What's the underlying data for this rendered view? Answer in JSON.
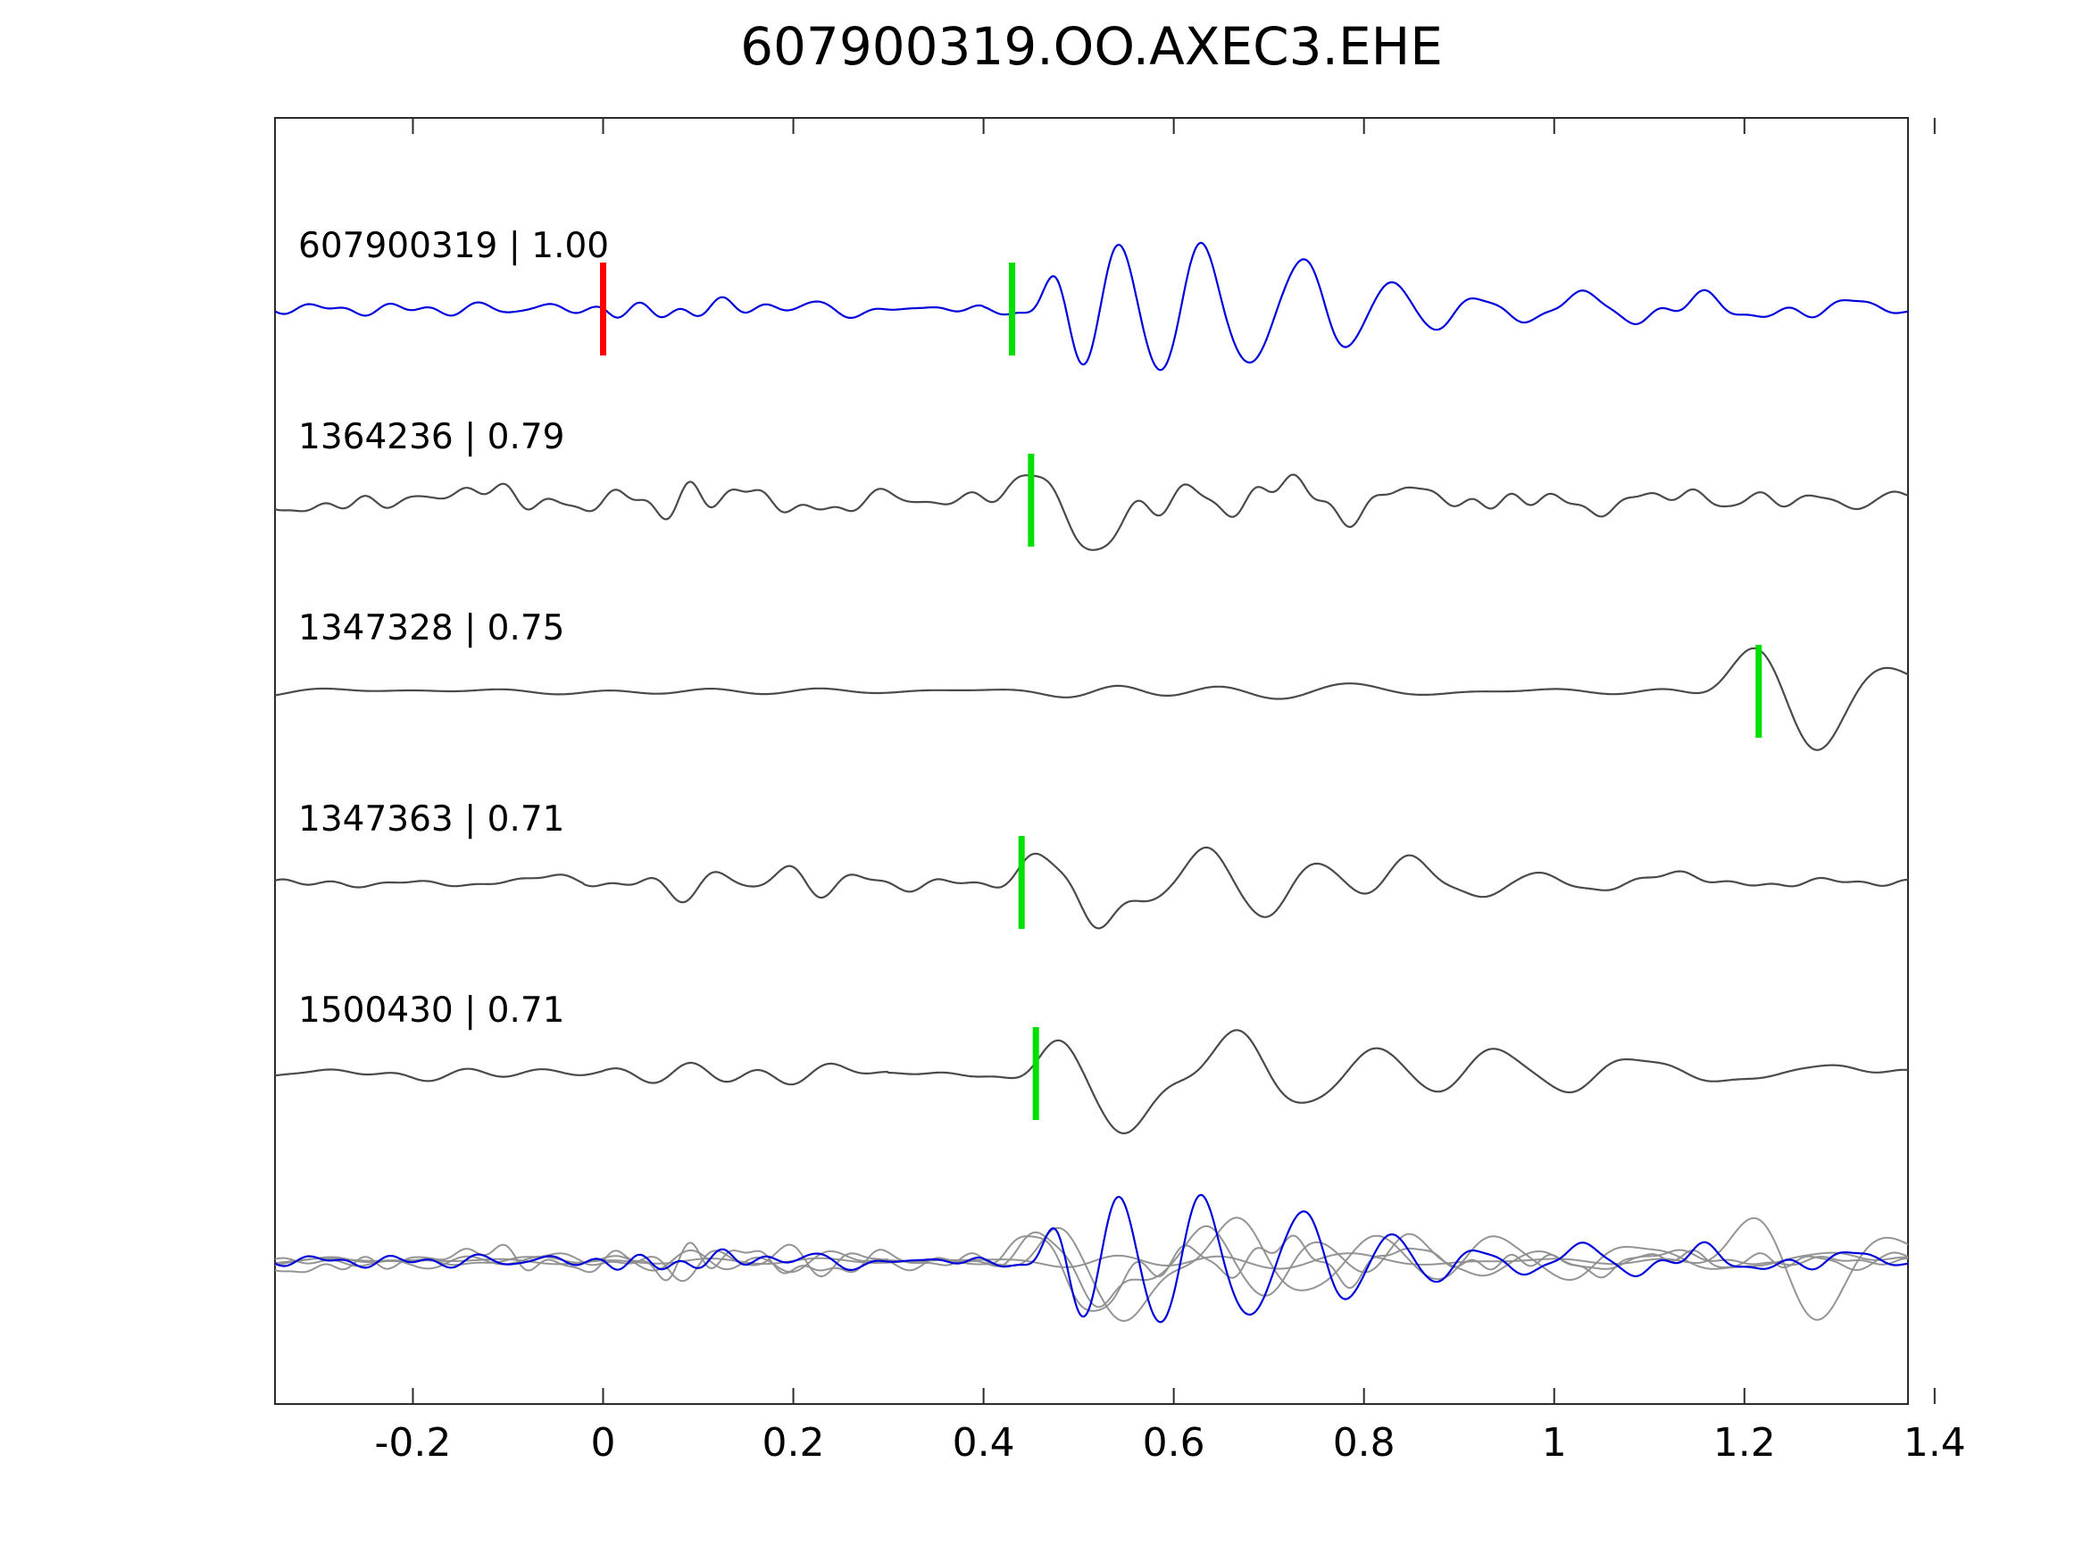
{
  "colors": {
    "reference_trace": "#0000dd",
    "match_trace": "#4a4a4a",
    "overlay_gray": "#8e8e8e",
    "pick_marker": "#00e000",
    "origin_marker": "#ff0000",
    "axis": "#2b2b2b",
    "text": "#000000"
  },
  "chart_data": {
    "type": "line",
    "title": "607900319.OO.AXEC3.EHE",
    "xlabel": "",
    "ylabel": "",
    "grid": false,
    "legend": "none",
    "x_range": [
      -0.345,
      1.372
    ],
    "axis": {
      "ticks": [
        -0.2,
        0,
        0.2,
        0.4,
        0.6,
        0.8,
        1,
        1.2,
        1.4
      ],
      "tick_labels": [
        "-0.2",
        "0",
        "0.2",
        "0.4",
        "0.6",
        "0.8",
        "1",
        "1.2",
        "1.4"
      ]
    },
    "rows": 6,
    "overlay_row_index": 5,
    "traces": [
      {
        "id": "607900319",
        "label": "607900319 | 1.00",
        "correlation": 1.0,
        "role": "reference",
        "row": 0,
        "pick_x": 0.43,
        "origin_marker_x": 0.0,
        "synth": {
          "seed": 11,
          "noise_hf": 26,
          "noise_segments": [
            [
              -0.35,
              0.0,
              3.2
            ],
            [
              0.0,
              0.4,
              5.0
            ],
            [
              0.4,
              1.38,
              4.0
            ]
          ],
          "packets": [
            {
              "t": 0.475,
              "f": 16,
              "a": 18,
              "s": 0.02,
              "p": 1.6
            },
            {
              "t": 0.525,
              "f": 13,
              "a": 52,
              "s": 0.04,
              "p": 0.2
            },
            {
              "t": 0.615,
              "f": 12,
              "a": 68,
              "s": 0.05,
              "p": 0.6
            },
            {
              "t": 0.715,
              "f": 10,
              "a": 55,
              "s": 0.05,
              "p": 0.1
            },
            {
              "t": 0.815,
              "f": 9,
              "a": 32,
              "s": 0.045,
              "p": 0.3
            },
            {
              "t": 0.9,
              "f": 8,
              "a": 20,
              "s": 0.05,
              "p": 0
            },
            {
              "t": 1.0,
              "f": 7,
              "a": 17,
              "s": 0.06,
              "p": 0
            },
            {
              "t": 1.12,
              "f": 6,
              "a": 11,
              "s": 0.08,
              "p": 0
            },
            {
              "t": 1.27,
              "f": 6,
              "a": 8,
              "s": 0.08,
              "p": 0
            }
          ]
        }
      },
      {
        "id": "1364236",
        "label": "1364236 | 0.79",
        "correlation": 0.79,
        "role": "match",
        "row": 1,
        "pick_x": 0.45,
        "synth": {
          "seed": 23,
          "noise_hf": 28,
          "noise_segments": [
            [
              -0.35,
              1.38,
              7.5
            ]
          ],
          "packets": [
            {
              "t": 0.455,
              "f": 10,
              "a": 26,
              "s": 0.025,
              "p": 1.6
            },
            {
              "t": 0.52,
              "f": 6,
              "a": 52,
              "s": 0.03,
              "p": -1.6
            },
            {
              "t": 0.6,
              "f": 9,
              "a": 16,
              "s": 0.04,
              "p": 0
            },
            {
              "t": 0.7,
              "f": 7,
              "a": 24,
              "s": 0.05,
              "p": 0.8
            },
            {
              "t": 0.82,
              "f": 8,
              "a": 15,
              "s": 0.06,
              "p": 0
            },
            {
              "t": 0.97,
              "f": 8,
              "a": 11,
              "s": 0.08,
              "p": 0
            }
          ]
        }
      },
      {
        "id": "1347328",
        "label": "1347328 | 0.75",
        "correlation": 0.75,
        "role": "match",
        "row": 2,
        "pick_x": 1.215,
        "synth": {
          "seed": 37,
          "noise_hf": 10,
          "noise_segments": [
            [
              -0.35,
              1.38,
              2.2
            ]
          ],
          "packets": [
            {
              "t": 0.52,
              "f": 7,
              "a": 9,
              "s": 0.05,
              "p": 0
            },
            {
              "t": 0.63,
              "f": 6,
              "a": 7,
              "s": 0.06,
              "p": 0
            },
            {
              "t": 0.76,
              "f": 5,
              "a": 8,
              "s": 0.06,
              "p": 0.5
            },
            {
              "t": 0.95,
              "f": 4,
              "a": 5,
              "s": 0.08,
              "p": 0
            },
            {
              "t": 1.1,
              "f": 4,
              "a": 6,
              "s": 0.06,
              "p": 0
            },
            {
              "t": 1.21,
              "f": 5,
              "a": 42,
              "s": 0.035,
              "p": 1.6
            },
            {
              "t": 1.275,
              "f": 4.5,
              "a": 58,
              "s": 0.035,
              "p": -1.6
            },
            {
              "t": 1.345,
              "f": 4,
              "a": 26,
              "s": 0.04,
              "p": 1.2
            }
          ]
        }
      },
      {
        "id": "1347363",
        "label": "1347363 | 0.71",
        "correlation": 0.71,
        "role": "match",
        "row": 3,
        "pick_x": 0.44,
        "synth": {
          "seed": 51,
          "noise_hf": 22,
          "noise_segments": [
            [
              -0.35,
              -0.02,
              3.5
            ],
            [
              -0.02,
              0.35,
              4.5
            ],
            [
              0.35,
              1.38,
              3.5
            ]
          ],
          "packets": [
            {
              "t": 0.1,
              "f": 13,
              "a": 10,
              "s": 0.09,
              "p": 0
            },
            {
              "t": 0.26,
              "f": 12,
              "a": 8,
              "s": 0.08,
              "p": 0.7
            },
            {
              "t": 0.455,
              "f": 10,
              "a": 28,
              "s": 0.025,
              "p": 1.6
            },
            {
              "t": 0.525,
              "f": 7,
              "a": 52,
              "s": 0.035,
              "p": -1.6
            },
            {
              "t": 0.615,
              "f": 8,
              "a": 34,
              "s": 0.05,
              "p": 0.5
            },
            {
              "t": 0.725,
              "f": 7,
              "a": 34,
              "s": 0.05,
              "p": 0
            },
            {
              "t": 0.83,
              "f": 6,
              "a": 24,
              "s": 0.05,
              "p": 0.6
            },
            {
              "t": 0.95,
              "f": 6,
              "a": 14,
              "s": 0.06,
              "p": 0
            },
            {
              "t": 1.08,
              "f": 5,
              "a": 11,
              "s": 0.07,
              "p": 0
            }
          ]
        }
      },
      {
        "id": "1500430",
        "label": "1500430 | 0.71",
        "correlation": 0.71,
        "role": "match",
        "row": 4,
        "pick_x": 0.455,
        "synth": {
          "seed": 67,
          "noise_hf": 16,
          "noise_segments": [
            [
              -0.35,
              0.0,
              2.8
            ],
            [
              0.0,
              0.3,
              4.0
            ],
            [
              0.3,
              1.38,
              3.0
            ]
          ],
          "packets": [
            {
              "t": 0.07,
              "f": 10,
              "a": 7,
              "s": 0.05,
              "p": 0
            },
            {
              "t": 0.22,
              "f": 9,
              "a": 6,
              "s": 0.06,
              "p": 0
            },
            {
              "t": 0.475,
              "f": 8,
              "a": 30,
              "s": 0.03,
              "p": 1.6
            },
            {
              "t": 0.545,
              "f": 5.5,
              "a": 58,
              "s": 0.035,
              "p": -1.6
            },
            {
              "t": 0.65,
              "f": 5.5,
              "a": 44,
              "s": 0.05,
              "p": 0.8
            },
            {
              "t": 0.78,
              "f": 5,
              "a": 42,
              "s": 0.05,
              "p": 0
            },
            {
              "t": 0.92,
              "f": 5,
              "a": 32,
              "s": 0.05,
              "p": 0.4
            },
            {
              "t": 1.05,
              "f": 4.5,
              "a": 24,
              "s": 0.06,
              "p": 0
            },
            {
              "t": 1.22,
              "f": 4,
              "a": 12,
              "s": 0.07,
              "p": 0
            }
          ]
        }
      }
    ]
  }
}
